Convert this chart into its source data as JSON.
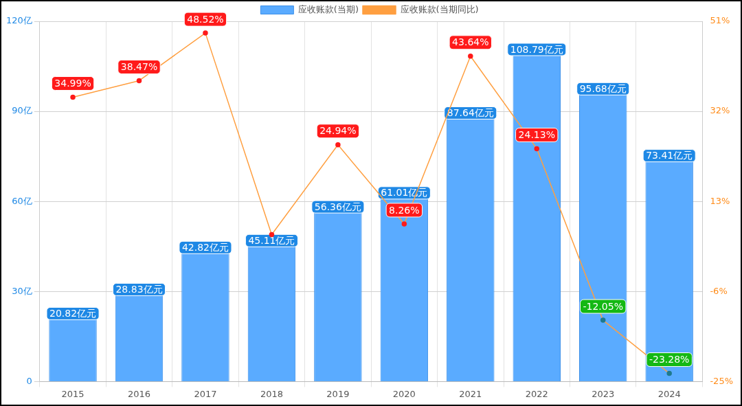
{
  "chart_data": {
    "type": "bar",
    "categories": [
      "2015",
      "2016",
      "2017",
      "2018",
      "2019",
      "2020",
      "2021",
      "2022",
      "2023",
      "2024"
    ],
    "series": [
      {
        "name": "应收账款(当期)",
        "color": "#5aabff",
        "values": [
          20.82,
          28.83,
          42.82,
          45.11,
          56.36,
          61.01,
          87.64,
          108.79,
          95.68,
          73.41
        ],
        "value_labels": [
          "20.82亿元",
          "28.83亿元",
          "42.82亿元",
          "45.11亿元",
          "56.36亿元",
          "61.01亿元",
          "87.64亿元",
          "108.79亿元",
          "95.68亿元",
          "73.41亿元"
        ]
      },
      {
        "name": "应收账款(当期同比)",
        "type": "line",
        "axis": "y2",
        "color": "#ff9f40",
        "values": [
          34.99,
          38.47,
          48.52,
          6,
          24.94,
          8.26,
          43.64,
          24.13,
          -12.05,
          -23.28
        ],
        "value_labels": [
          "34.99%",
          "38.47%",
          "48.52%",
          null,
          "24.94%",
          "8.26%",
          "43.64%",
          "24.13%",
          "-12.05%",
          "-23.28%"
        ]
      }
    ],
    "ylim": [
      0,
      120
    ],
    "yticks": [
      {
        "value": 0,
        "label": "0"
      },
      {
        "value": 30,
        "label": "30亿"
      },
      {
        "value": 60,
        "label": "60亿"
      },
      {
        "value": 90,
        "label": "90亿"
      },
      {
        "value": 120,
        "label": "120亿"
      }
    ],
    "y2lim": [
      -25,
      51
    ],
    "y2ticks": [
      {
        "value": -25,
        "label": "-25%"
      },
      {
        "value": -6,
        "label": "-6%"
      },
      {
        "value": 13,
        "label": "13%"
      },
      {
        "value": 32,
        "label": "32%"
      },
      {
        "value": 51,
        "label": "51%"
      }
    ],
    "grid": true,
    "legend": "top",
    "marker": "circle"
  }
}
